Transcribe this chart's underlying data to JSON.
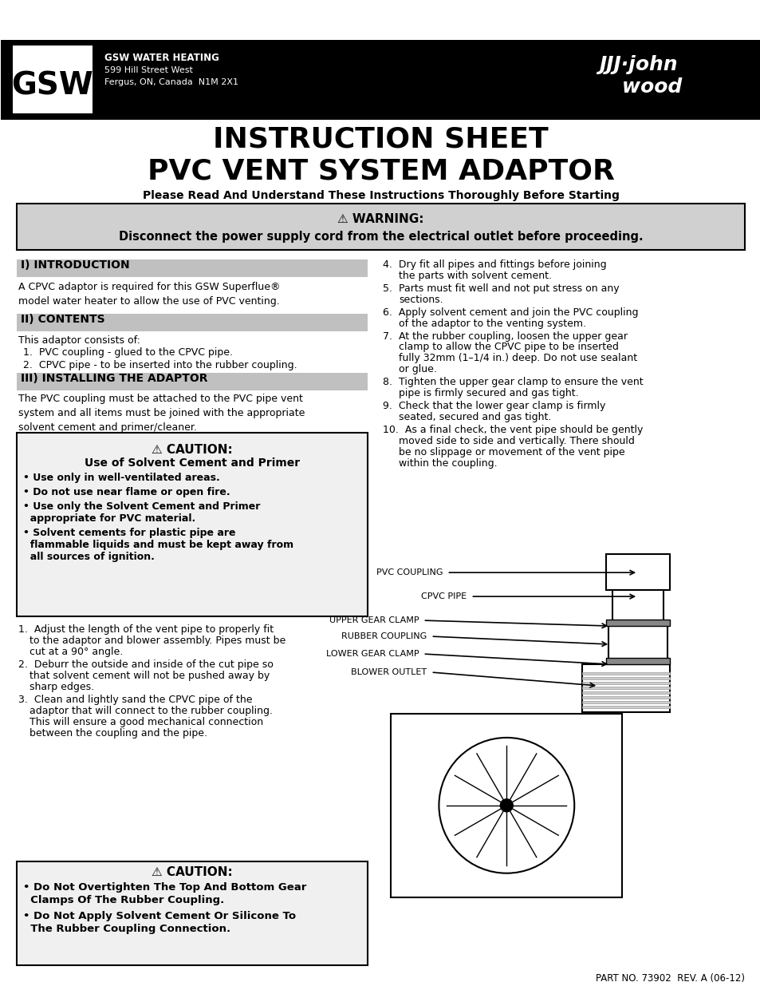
{
  "bg_color": "#ffffff",
  "header_bg": "#000000",
  "header_text_color": "#ffffff",
  "gsw_company": "GSW WATER HEATING",
  "gsw_address1": "599 Hill Street West",
  "gsw_address2": "Fergus, ON, Canada  N1M 2X1",
  "title1": "INSTRUCTION SHEET",
  "title2": "PVC VENT SYSTEM ADAPTOR",
  "subtitle": "Please Read And Understand These Instructions Thoroughly Before Starting",
  "warning_title": "⚠ WARNING:",
  "warning_text": "Disconnect the power supply cord from the electrical outlet before proceeding.",
  "section1_title": "I) INTRODUCTION",
  "section1_body": "A CPVC adaptor is required for this GSW Superflue®\nmodel water heater to allow the use of PVC venting.",
  "section2_title": "II) CONTENTS",
  "section2_body": "This adaptor consists of:",
  "section2_item1": "PVC coupling - glued to the CPVC pipe.",
  "section2_item2": "CPVC pipe - to be inserted into the rubber coupling.",
  "section3_title": "III) INSTALLING THE ADAPTOR",
  "section3_body": "The PVC coupling must be attached to the PVC pipe vent\nsystem and all items must be joined with the appropriate\nsolvent cement and primer/cleaner.",
  "caution1_title": "⚠ CAUTION:",
  "caution1_subtitle": "Use of Solvent Cement and Primer",
  "caution1_items": [
    "Use only in well-ventilated areas.",
    "Do not use near flame or open fire.",
    "Use only the Solvent Cement and Primer appropriate for PVC material.",
    "Solvent cements for plastic pipe are flammable liquids and must be kept away from all sources of ignition."
  ],
  "steps": [
    "Adjust the length of the vent pipe to properly fit to the adaptor and blower assembly. Pipes must be cut at a 90° angle.",
    "Deburr the outside and inside of the cut pipe so that solvent cement will not be pushed away by sharp edges.",
    "Clean and lightly sand the CPVC pipe of the adaptor that will connect to the rubber coupling. This will ensure a good mechanical connection between the coupling and the pipe.",
    "Dry fit all pipes and fittings before joining the parts with solvent cement.",
    "Parts must fit well and not put stress on any sections.",
    "Apply solvent cement and join the PVC coupling of the adaptor to the venting system.",
    "At the rubber coupling, loosen the upper gear clamp to allow the CPVC pipe to be inserted fully 32mm (1–1/4 in.) deep. Do not use sealant or glue.",
    "Tighten the upper gear clamp to ensure the vent pipe is firmly secured and gas tight.",
    "Check that the lower gear clamp is firmly seated, secured and gas tight.",
    "As a final check, the vent pipe should be gently moved side to side and vertically. There should be no slippage or movement of the vent pipe within the coupling."
  ],
  "caution2_title": "⚠ CAUTION:",
  "caution2_items": [
    "Do Not Overtighten The Top And Bottom Gear Clamps Of The Rubber Coupling.",
    "Do Not Apply Solvent Cement Or Silicone To The Rubber Coupling Connection."
  ],
  "part_no": "PART NO. 73902  REV. A (06-12)",
  "diagram_labels": [
    "PVC COUPLING",
    "CPVC PIPE",
    "UPPER GEAR CLAMP",
    "RUBBER COUPLING",
    "LOWER GEAR CLAMP",
    "BLOWER OUTLET"
  ],
  "section_header_color": "#c0c0c0",
  "warning_bg": "#d0d0d0",
  "caution_bg": "#f0f0f0"
}
